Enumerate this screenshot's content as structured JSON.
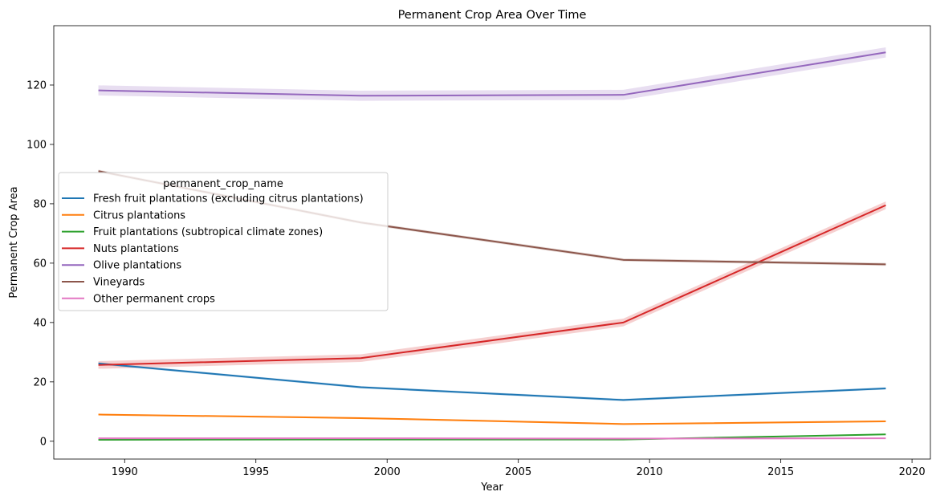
{
  "chart_data": {
    "type": "line",
    "title": "Permanent Crop Area Over Time",
    "xlabel": "Year",
    "ylabel": "Permanent Crop Area",
    "xlim": [
      1987.3,
      2020.7
    ],
    "ylim": [
      -6,
      140
    ],
    "xticks": [
      1990,
      1995,
      2000,
      2005,
      2010,
      2015,
      2020
    ],
    "yticks": [
      0,
      20,
      40,
      60,
      80,
      100,
      120
    ],
    "grid": false,
    "legend": {
      "title": "permanent_crop_name",
      "placement": "center-left"
    },
    "x": [
      1989,
      1999,
      2009,
      2019
    ],
    "series": [
      {
        "name": "Fresh fruit plantations (excluding citrus plantations)",
        "color": "#1f77b4",
        "values": [
          26.2,
          18.2,
          13.9,
          17.8
        ],
        "band": 0.4
      },
      {
        "name": "Citrus plantations",
        "color": "#ff7f0e",
        "values": [
          9.0,
          7.8,
          5.8,
          6.7
        ],
        "band": 0.3
      },
      {
        "name": "Fruit plantations (subtropical climate zones)",
        "color": "#2ca02c",
        "values": [
          0.5,
          0.6,
          0.6,
          2.3
        ],
        "band": 0.2
      },
      {
        "name": "Nuts plantations",
        "color": "#d62728",
        "values": [
          25.7,
          28.0,
          40.0,
          79.5
        ],
        "band": 1.3
      },
      {
        "name": "Olive plantations",
        "color": "#9467bd",
        "values": [
          118.2,
          116.4,
          116.7,
          131.0
        ],
        "band": 1.7
      },
      {
        "name": "Vineyards",
        "color": "#8c564b",
        "values": [
          91.0,
          73.7,
          61.1,
          59.6
        ],
        "band": 0.5
      },
      {
        "name": "Other permanent crops",
        "color": "#e377c2",
        "values": [
          1.0,
          1.0,
          0.9,
          1.0
        ],
        "band": 0.2
      }
    ]
  }
}
